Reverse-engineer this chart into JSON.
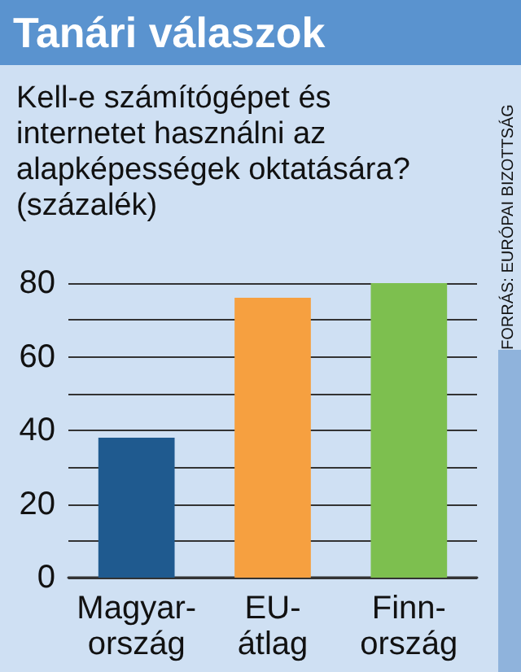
{
  "chart_data": {
    "type": "bar",
    "title": "Tanári válaszok",
    "subtitle": "Kell-e számítógépet és internetet használni az alapképességek oktatására? (százalék)",
    "categories": [
      "Magyar-ország",
      "EU-átlag",
      "Finn-ország"
    ],
    "values": [
      38,
      76,
      80
    ],
    "colors": [
      "#1f5a8f",
      "#f6a040",
      "#7dbf4f"
    ],
    "ylim": [
      0,
      80
    ],
    "yticks": [
      0,
      {
        "value": 10,
        "label": null
      },
      20,
      {
        "value": 30,
        "label": null
      },
      40,
      {
        "value": 50,
        "label": null
      },
      60,
      {
        "value": 70,
        "label": null
      },
      80
    ],
    "grid": true,
    "annotations": [
      "FORRÁS: EURÓPAI BIZOTTSÁG"
    ]
  }
}
